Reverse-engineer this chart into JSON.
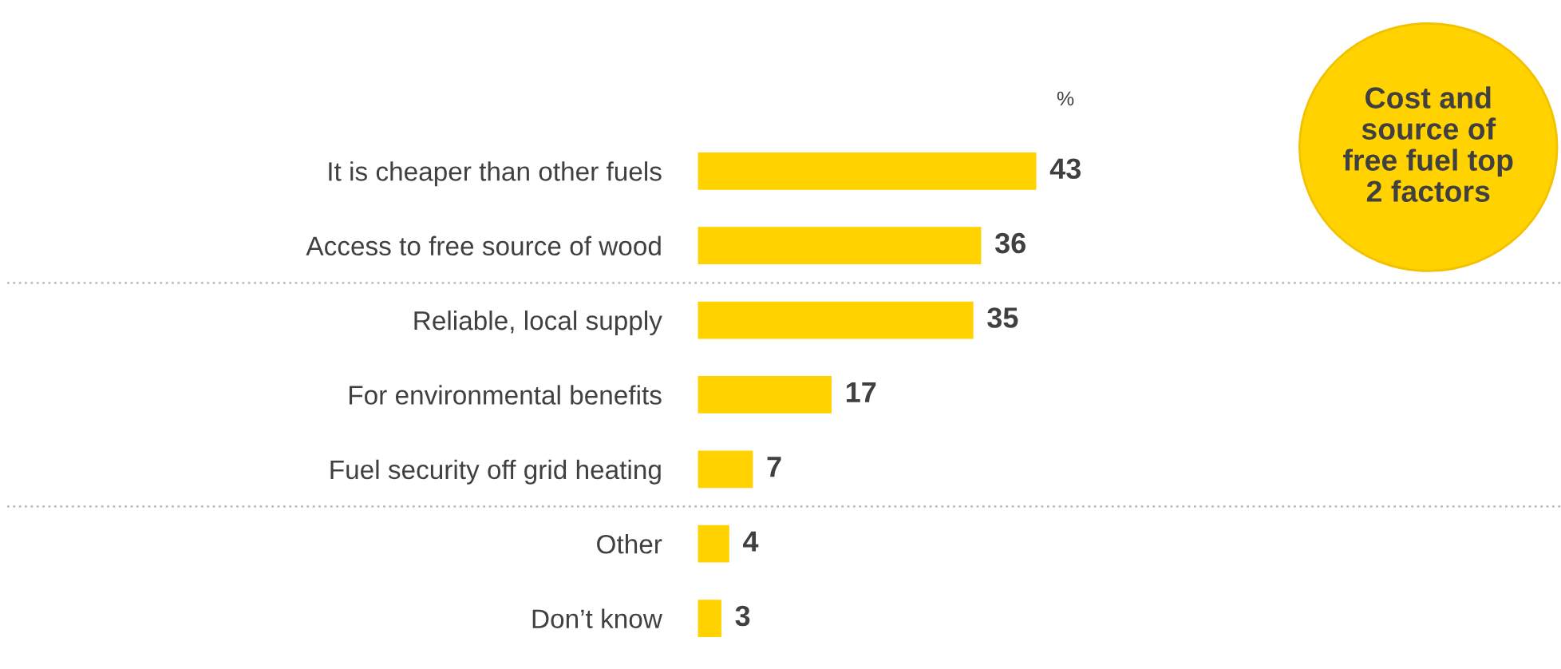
{
  "chart_data": {
    "type": "bar",
    "orientation": "horizontal",
    "categories": [
      "It is cheaper than other fuels",
      "Access to free source of wood",
      "Reliable, local supply",
      "For environmental benefits",
      "Fuel security off grid heating",
      "Other",
      "Don’t know"
    ],
    "values": [
      43,
      36,
      35,
      17,
      7,
      4,
      3
    ],
    "color": "#ffd200",
    "data_labels": true,
    "xlabel": "%",
    "annotations": [
      "Cost and source of free fuel top 2 factors"
    ],
    "legend": false,
    "grid": false
  }
}
